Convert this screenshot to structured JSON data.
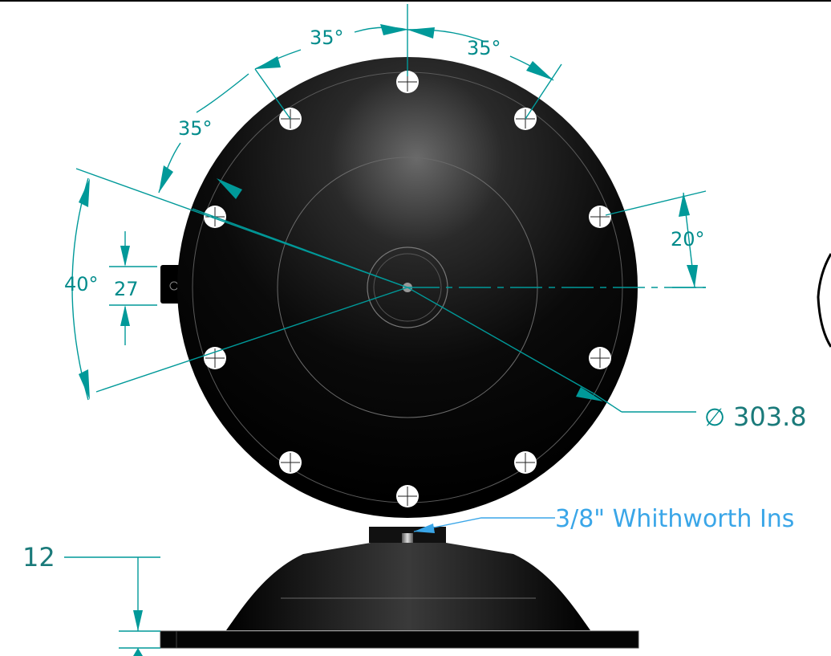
{
  "drawing": {
    "angle_labels": {
      "top_left": "35°",
      "top_right": "35°",
      "upper_left": "35°",
      "left": "40°",
      "right": "20°"
    },
    "linear_labels": {
      "tab_width": "27",
      "base_thickness": "12",
      "diameter": "303.8"
    },
    "diameter_symbol": "∅",
    "callout": "3/8\" Whithworth Ins",
    "hole_count": 10,
    "colors": {
      "dimension": "#009999",
      "callout": "#3aa6e8",
      "body": "#000000",
      "hole": "#ffffff"
    }
  }
}
